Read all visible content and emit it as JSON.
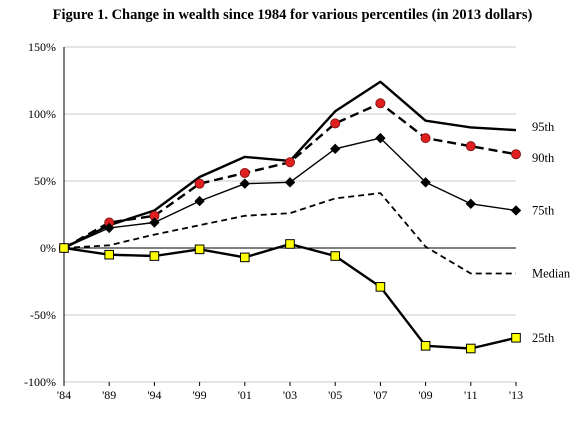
{
  "chart_data": {
    "type": "line",
    "title": "Figure 1. Change in wealth since 1984 for various percentiles (in 2013 dollars)",
    "xlabel": "",
    "ylabel": "",
    "categories": [
      "'84",
      "'89",
      "'94",
      "'99",
      "'01",
      "'03",
      "'05",
      "'07",
      "'09",
      "'11",
      "'13"
    ],
    "ylim": [
      -100,
      150
    ],
    "yticks": [
      -100,
      -50,
      0,
      50,
      100,
      150
    ],
    "ytick_labels": [
      "-100%",
      "-50%",
      "0%",
      "50%",
      "100%",
      "150%"
    ],
    "grid": true,
    "series": [
      {
        "name": "95th",
        "style": "solid-thick",
        "marker": "none",
        "color": "#000000",
        "values": [
          0,
          17,
          28,
          53,
          68,
          65,
          102,
          124,
          95,
          90,
          88
        ]
      },
      {
        "name": "90th",
        "style": "dashed-thick",
        "marker": "circle",
        "color": "#000000",
        "marker_color": "#e02020",
        "values": [
          0,
          19,
          24,
          48,
          56,
          64,
          93,
          108,
          82,
          76,
          70
        ]
      },
      {
        "name": "75th",
        "style": "solid",
        "marker": "diamond",
        "color": "#000000",
        "marker_color": "#000000",
        "values": [
          0,
          15,
          19,
          35,
          48,
          49,
          74,
          82,
          49,
          33,
          28
        ]
      },
      {
        "name": "Median",
        "style": "dashed",
        "marker": "none",
        "color": "#000000",
        "values": [
          0,
          2,
          10,
          17,
          24,
          26,
          37,
          41,
          1,
          -19,
          -19
        ]
      },
      {
        "name": "25th",
        "style": "solid-thick",
        "marker": "square",
        "color": "#000000",
        "marker_color": "#ffff00",
        "values": [
          0,
          -5,
          -6,
          -1,
          -7,
          3,
          -6,
          -29,
          -73,
          -75,
          -67
        ]
      }
    ]
  }
}
